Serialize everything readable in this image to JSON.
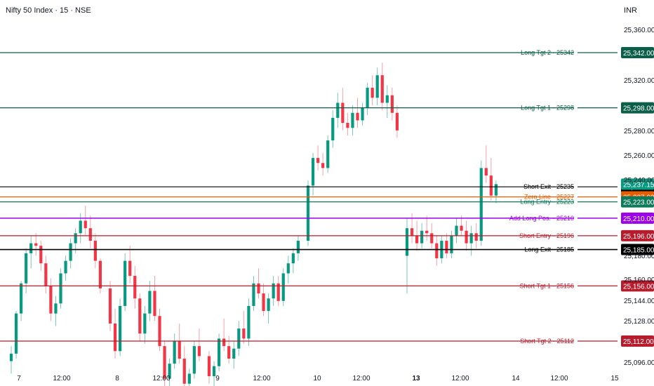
{
  "header": {
    "title": "Nifty 50 Index · 15 · NSE",
    "currency": "INR"
  },
  "chart_data": {
    "type": "candlestick",
    "symbol": "Nifty 50 Index",
    "interval": "15",
    "exchange": "NSE",
    "price_ticks": [
      "25,360.00",
      "25,320.00",
      "25,280.00",
      "25,260.00",
      "25,240.00",
      "25,180.00",
      "25,160.00",
      "25,144.00",
      "25,128.00",
      "25,096.00"
    ],
    "time_ticks": [
      {
        "label": "7",
        "bold": false
      },
      {
        "label": "12:00",
        "bold": false
      },
      {
        "label": "8",
        "bold": false
      },
      {
        "label": "12:00",
        "bold": false
      },
      {
        "label": "9",
        "bold": false
      },
      {
        "label": "12:00",
        "bold": false
      },
      {
        "label": "10",
        "bold": false
      },
      {
        "label": "12:00",
        "bold": false
      },
      {
        "label": "13",
        "bold": true
      },
      {
        "label": "12:00",
        "bold": false
      },
      {
        "label": "14",
        "bold": false
      },
      {
        "label": "12:00",
        "bold": false
      },
      {
        "label": "15",
        "bold": false
      }
    ],
    "levels": [
      {
        "label": "Long Tgt 2 - 25342",
        "price": 25342,
        "tag": "25,342.00",
        "color": "#0b5e48",
        "width": 1.2
      },
      {
        "label": "Long Tgt 1 - 25298",
        "price": 25298,
        "tag": "25,298.00",
        "color": "#0b5e48",
        "width": 1.2
      },
      {
        "label": "Short Exit - 25235",
        "price": 25235,
        "tag": "25,235.00",
        "color": "#000000",
        "width": 1.2
      },
      {
        "label": "Zero Line - 25227",
        "price": 25227,
        "tag": "25,227.00",
        "color": "#e65c00",
        "width": 1.2
      },
      {
        "label": "Long Entry - 25223",
        "price": 25223,
        "tag": "25,223.00",
        "color": "#0f7a5a",
        "width": 1.2
      },
      {
        "label": "Add Long Pos. - 25210",
        "price": 25210,
        "tag": "25,210.00",
        "color": "#9b00e8",
        "width": 1.5
      },
      {
        "label": "Short Entry - 25196",
        "price": 25196,
        "tag": "25,196.00",
        "color": "#b71c2c",
        "width": 1.2
      },
      {
        "label": "Long Exit - 25185",
        "price": 25185,
        "tag": "25,185.00",
        "color": "#000000",
        "width": 1.6
      },
      {
        "label": "Short Tgt 1 - 25156",
        "price": 25156,
        "tag": "25,156.00",
        "color": "#b71c2c",
        "width": 1.2
      },
      {
        "label": "Short Tgt 2 - 25112",
        "price": 25112,
        "tag": "25,112.00",
        "color": "#b71c2c",
        "width": 1.2
      }
    ],
    "last_price": {
      "value": 25237.15,
      "tag": "25,237.15",
      "color": "#089981"
    },
    "colors": {
      "up": "#089981",
      "down": "#f23645",
      "wick_up": "#78c6b3",
      "wick_down": "#f3a1a8"
    },
    "session_candles": [
      {
        "ohlc": [
          [
            25096,
            25108,
            25086,
            25102
          ],
          [
            25102,
            25136,
            25098,
            25134
          ],
          [
            25134,
            25160,
            25128,
            25158
          ],
          [
            25158,
            25186,
            25150,
            25182
          ],
          [
            25182,
            25196,
            25170,
            25190
          ],
          [
            25190,
            25198,
            25180,
            25188
          ],
          [
            25188,
            25192,
            25168,
            25174
          ],
          [
            25174,
            25180,
            25150,
            25156
          ],
          [
            25156,
            25162,
            25128,
            25134
          ],
          [
            25134,
            25148,
            25124,
            25142
          ],
          [
            25142,
            25170,
            25138,
            25166
          ],
          [
            25166,
            25180,
            25160,
            25176
          ],
          [
            25176,
            25194,
            25170,
            25190
          ],
          [
            25190,
            25202,
            25182,
            25198
          ],
          [
            25198,
            25214,
            25190,
            25208
          ],
          [
            25208,
            25220,
            25196,
            25202
          ],
          [
            25202,
            25212,
            25186,
            25192
          ],
          [
            25192,
            25198,
            25170,
            25176
          ],
          [
            25176,
            25178,
            25150,
            25154
          ]
        ]
      },
      {
        "ohlc": [
          [
            25154,
            25160,
            25120,
            25126
          ],
          [
            25126,
            25138,
            25098,
            25104
          ],
          [
            25104,
            25146,
            25100,
            25140
          ],
          [
            25140,
            25182,
            25136,
            25176
          ],
          [
            25176,
            25188,
            25158,
            25164
          ],
          [
            25164,
            25172,
            25138,
            25146
          ],
          [
            25146,
            25150,
            25112,
            25118
          ],
          [
            25118,
            25140,
            25110,
            25134
          ],
          [
            25134,
            25160,
            25128,
            25152
          ],
          [
            25152,
            25164,
            25128,
            25132
          ],
          [
            25132,
            25138,
            25104,
            25108
          ],
          [
            25108,
            25112,
            25076,
            25082
          ],
          [
            25082,
            25098,
            25070,
            25094
          ],
          [
            25094,
            25118,
            25090,
            25112
          ],
          [
            25112,
            25126,
            25094,
            25098
          ],
          [
            25098,
            25108,
            25074,
            25078
          ],
          [
            25078,
            25090,
            25064,
            25086
          ],
          [
            25086,
            25112,
            25082,
            25108
          ],
          [
            25108,
            25122,
            25096,
            25100
          ]
        ]
      },
      {
        "ohlc": [
          [
            25100,
            25104,
            25078,
            25084
          ],
          [
            25084,
            25096,
            25070,
            25092
          ],
          [
            25092,
            25118,
            25088,
            25114
          ],
          [
            25114,
            25130,
            25104,
            25108
          ],
          [
            25108,
            25116,
            25094,
            25098
          ],
          [
            25098,
            25112,
            25090,
            25106
          ],
          [
            25106,
            25128,
            25100,
            25122
          ],
          [
            25122,
            25136,
            25110,
            25114
          ],
          [
            25114,
            25146,
            25108,
            25140
          ],
          [
            25140,
            25164,
            25136,
            25158
          ],
          [
            25158,
            25170,
            25146,
            25150
          ],
          [
            25150,
            25158,
            25132,
            25136
          ],
          [
            25136,
            25150,
            25126,
            25146
          ],
          [
            25146,
            25164,
            25140,
            25158
          ],
          [
            25158,
            25164,
            25140,
            25144
          ],
          [
            25144,
            25170,
            25140,
            25166
          ],
          [
            25166,
            25180,
            25158,
            25174
          ],
          [
            25174,
            25186,
            25166,
            25182
          ],
          [
            25182,
            25196,
            25176,
            25192
          ]
        ]
      },
      {
        "ohlc": [
          [
            25192,
            25240,
            25188,
            25236
          ],
          [
            25236,
            25262,
            25228,
            25258
          ],
          [
            25258,
            25268,
            25248,
            25254
          ],
          [
            25254,
            25262,
            25244,
            25250
          ],
          [
            25250,
            25276,
            25246,
            25272
          ],
          [
            25272,
            25296,
            25266,
            25290
          ],
          [
            25290,
            25310,
            25282,
            25302
          ],
          [
            25302,
            25314,
            25280,
            25286
          ],
          [
            25286,
            25294,
            25276,
            25282
          ],
          [
            25282,
            25300,
            25276,
            25294
          ],
          [
            25294,
            25306,
            25282,
            25288
          ],
          [
            25288,
            25302,
            25284,
            25298
          ],
          [
            25298,
            25318,
            25292,
            25314
          ],
          [
            25314,
            25324,
            25300,
            25306
          ],
          [
            25306,
            25330,
            25300,
            25324
          ],
          [
            25324,
            25334,
            25296,
            25302
          ],
          [
            25302,
            25316,
            25290,
            25308
          ],
          [
            25308,
            25314,
            25288,
            25294
          ],
          [
            25294,
            25300,
            25274,
            25280
          ]
        ]
      },
      {
        "ohlc": [
          [
            25180,
            25210,
            25150,
            25202
          ],
          [
            25202,
            25214,
            25190,
            25196
          ],
          [
            25196,
            25208,
            25184,
            25190
          ],
          [
            25190,
            25206,
            25186,
            25200
          ],
          [
            25200,
            25212,
            25192,
            25198
          ],
          [
            25198,
            25206,
            25186,
            25190
          ],
          [
            25190,
            25196,
            25172,
            25178
          ],
          [
            25178,
            25196,
            25174,
            25192
          ],
          [
            25192,
            25198,
            25178,
            25182
          ],
          [
            25182,
            25200,
            25178,
            25196
          ],
          [
            25196,
            25210,
            25190,
            25204
          ],
          [
            25204,
            25212,
            25196,
            25200
          ],
          [
            25200,
            25208,
            25184,
            25190
          ],
          [
            25190,
            25204,
            25180,
            25198
          ],
          [
            25198,
            25206,
            25186,
            25192
          ],
          [
            25192,
            25256,
            25188,
            25250
          ],
          [
            25250,
            25268,
            25238,
            25244
          ],
          [
            25244,
            25258,
            25224,
            25228
          ],
          [
            25228,
            25240,
            25222,
            25237.15
          ]
        ]
      }
    ]
  }
}
